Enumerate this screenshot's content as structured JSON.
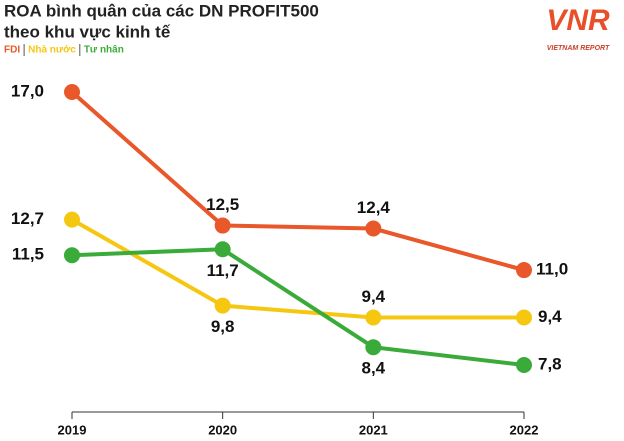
{
  "chart_data": {
    "type": "line",
    "title": "ROA bình quân của các DN PROFIT500",
    "subtitle": "theo khu vực kinh tế",
    "logo": {
      "mark": "VNR",
      "text": "VIETNAM REPORT"
    },
    "categories": [
      "2019",
      "2020",
      "2021",
      "2022"
    ],
    "series": [
      {
        "name": "FDI",
        "color": "#e8582a",
        "values": [
          17.0,
          12.5,
          12.4,
          11.0
        ],
        "value_labels": [
          "17,0",
          "12,5",
          "12,4",
          "11,0"
        ]
      },
      {
        "name": "Nhà nước",
        "color": "#f5c711",
        "values": [
          12.7,
          9.8,
          9.4,
          9.4
        ],
        "value_labels": [
          "12,7",
          "9,8",
          "9,4",
          "9,4"
        ]
      },
      {
        "name": "Tư nhân",
        "color": "#3aab3a",
        "values": [
          11.5,
          11.7,
          8.4,
          7.8
        ],
        "value_labels": [
          "11,5",
          "11,7",
          "8,4",
          "7,8"
        ]
      }
    ]
  }
}
